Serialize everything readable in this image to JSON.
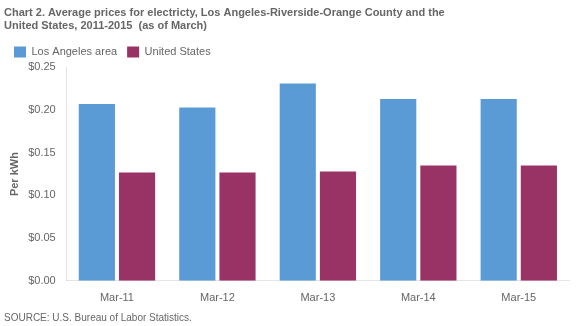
{
  "chart_data": {
    "type": "bar",
    "title": [
      "Chart 2. Average prices for electricty, Los Angeles-Riverside-Orange County and the",
      "United States, 2011-2015  (as of March)"
    ],
    "ylabel": "Per kWh",
    "annotations": [
      "SOURCE: U.S. Bureau of Labor Statistics."
    ],
    "categories": [
      "Mar-11",
      "Mar-12",
      "Mar-13",
      "Mar-14",
      "Mar-15"
    ],
    "series": [
      {
        "name": "Los Angeles area",
        "color": "#5B9BD5",
        "values": [
          0.207,
          0.203,
          0.231,
          0.213,
          0.213
        ]
      },
      {
        "name": "United States",
        "color": "#993366",
        "values": [
          0.127,
          0.127,
          0.128,
          0.135,
          0.135
        ]
      }
    ],
    "ylim": [
      0,
      0.25
    ],
    "yticks": [
      {
        "value": 0.0,
        "label": "$0.00"
      },
      {
        "value": 0.05,
        "label": "$0.05"
      },
      {
        "value": 0.1,
        "label": "$0.10"
      },
      {
        "value": 0.15,
        "label": "$0.15"
      },
      {
        "value": 0.2,
        "label": "$0.20"
      },
      {
        "value": 0.25,
        "label": "$0.25"
      }
    ],
    "grid": false,
    "legend": "upper left"
  }
}
